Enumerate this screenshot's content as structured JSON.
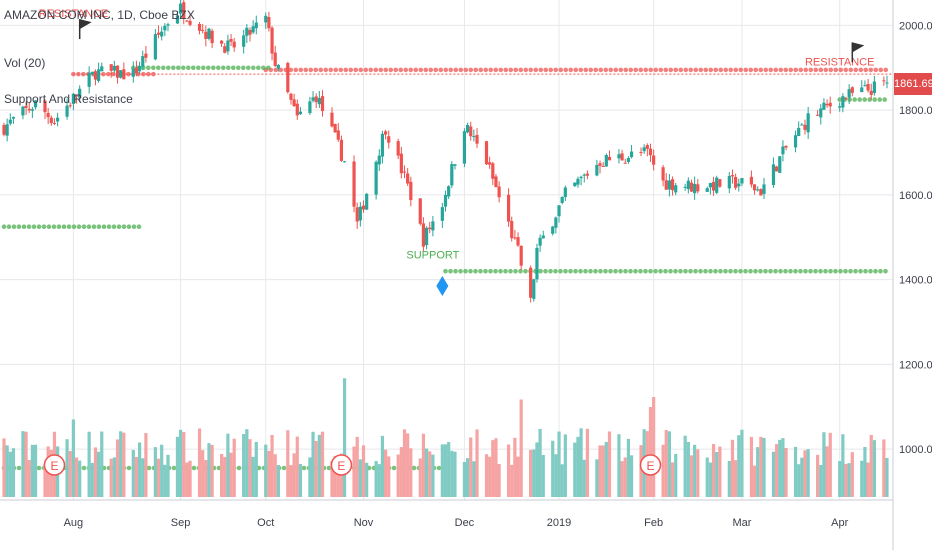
{
  "legend": {
    "symbol": "AMAZON COM INC, 1D, Cboe BZX",
    "volume": "Vol (20)",
    "indicator": "Support And Resistance"
  },
  "current_price": "1861.69",
  "colors": {
    "up": "#26a69a",
    "down": "#ef5350",
    "up_volume": "#80cbc4",
    "down_volume": "#f5a3a3",
    "resistance": "#ef5350",
    "support": "#4caf50",
    "grid": "#e6e8ec",
    "axis_text": "#3b3f4a",
    "price_tag": "#e14b4b",
    "diamond": "#2196f3"
  },
  "chart_data": {
    "type": "candlestick",
    "y_ticks": [
      "2000.00",
      "1800.00",
      "1600.00",
      "1400.00",
      "1200.00",
      "1000.00"
    ],
    "y_tick_values": [
      2000,
      1800,
      1600,
      1400,
      1200,
      1000
    ],
    "ylim": [
      880,
      2060
    ],
    "x_labels": [
      {
        "label": "Aug",
        "date": "2018-08-01"
      },
      {
        "label": "Sep",
        "date": "2018-09-04"
      },
      {
        "label": "Oct",
        "date": "2018-10-01"
      },
      {
        "label": "Nov",
        "date": "2018-11-01"
      },
      {
        "label": "Dec",
        "date": "2018-12-03"
      },
      {
        "label": "2019",
        "date": "2019-01-02"
      },
      {
        "label": "Feb",
        "date": "2019-02-01"
      },
      {
        "label": "Mar",
        "date": "2019-03-01"
      },
      {
        "label": "Apr",
        "date": "2019-04-01"
      }
    ],
    "date_range": [
      "2018-07-10",
      "2019-04-16"
    ],
    "price_path": [
      {
        "date": "2018-07-10",
        "close": 1760
      },
      {
        "date": "2018-07-20",
        "close": 1815
      },
      {
        "date": "2018-07-26",
        "close": 1775
      },
      {
        "date": "2018-08-08",
        "close": 1890
      },
      {
        "date": "2018-08-20",
        "close": 1885
      },
      {
        "date": "2018-08-31",
        "close": 2010
      },
      {
        "date": "2018-09-04",
        "close": 2040
      },
      {
        "date": "2018-09-14",
        "close": 1970
      },
      {
        "date": "2018-09-20",
        "close": 1945
      },
      {
        "date": "2018-10-01",
        "close": 2015
      },
      {
        "date": "2018-10-04",
        "close": 1910
      },
      {
        "date": "2018-10-11",
        "close": 1780
      },
      {
        "date": "2018-10-17",
        "close": 1835
      },
      {
        "date": "2018-10-26",
        "close": 1680
      },
      {
        "date": "2018-10-30",
        "close": 1530
      },
      {
        "date": "2018-11-08",
        "close": 1760
      },
      {
        "date": "2018-11-16",
        "close": 1600
      },
      {
        "date": "2018-11-20",
        "close": 1495
      },
      {
        "date": "2018-11-26",
        "close": 1580
      },
      {
        "date": "2018-12-03",
        "close": 1765
      },
      {
        "date": "2018-12-10",
        "close": 1680
      },
      {
        "date": "2018-12-20",
        "close": 1465
      },
      {
        "date": "2018-12-24",
        "close": 1345
      },
      {
        "date": "2018-12-26",
        "close": 1470
      },
      {
        "date": "2019-01-04",
        "close": 1600
      },
      {
        "date": "2019-01-15",
        "close": 1680
      },
      {
        "date": "2019-01-30",
        "close": 1700
      },
      {
        "date": "2019-02-04",
        "close": 1630
      },
      {
        "date": "2019-02-14",
        "close": 1620
      },
      {
        "date": "2019-02-28",
        "close": 1630
      },
      {
        "date": "2019-03-07",
        "close": 1610
      },
      {
        "date": "2019-03-15",
        "close": 1710
      },
      {
        "date": "2019-03-22",
        "close": 1780
      },
      {
        "date": "2019-04-02",
        "close": 1830
      },
      {
        "date": "2019-04-16",
        "close": 1862
      }
    ],
    "volume_ylim": [
      0,
      1
    ],
    "volume_peaks": [
      {
        "date": "2018-08-01",
        "value": 0.62
      },
      {
        "date": "2018-10-26",
        "value": 0.95
      },
      {
        "date": "2018-12-21",
        "value": 0.78
      },
      {
        "date": "2019-01-31",
        "value": 0.72
      },
      {
        "date": "2019-02-01",
        "value": 0.8
      }
    ],
    "resistance_levels": [
      {
        "from": "2018-08-01",
        "to": "2018-08-27",
        "price": 1885
      },
      {
        "from": "2018-10-01",
        "to": "2019-04-16",
        "price": 1895
      }
    ],
    "support_levels": [
      {
        "from": "2018-08-20",
        "to": "2018-10-02",
        "price": 1900
      },
      {
        "from": "2018-07-10",
        "to": "2018-08-22",
        "price": 1525
      },
      {
        "from": "2018-11-27",
        "to": "2019-04-16",
        "price": 1420
      },
      {
        "from": "2019-04-01",
        "to": "2019-04-16",
        "price": 1825
      },
      {
        "from": "2018-07-10",
        "to": "2018-11-26",
        "volume_dots": true
      }
    ],
    "annotations": [
      {
        "text": "RESISTANCE",
        "date": "2018-08-01",
        "price": 2020,
        "kind": "resistance"
      },
      {
        "text": "RESISTANCE",
        "date": "2019-04-01",
        "price": 1905,
        "kind": "resistance"
      },
      {
        "text": "SUPPORT",
        "date": "2018-11-23",
        "price": 1450,
        "kind": "support"
      }
    ],
    "flags": [
      {
        "date": "2018-08-03",
        "price": 2015
      },
      {
        "date": "2019-04-05",
        "price": 1960
      }
    ],
    "diamond": {
      "date": "2018-11-26",
      "price": 1385
    },
    "earnings_markers": [
      {
        "text": "E",
        "date": "2018-07-26"
      },
      {
        "text": "E",
        "date": "2018-10-25"
      },
      {
        "text": "E",
        "date": "2019-01-31"
      }
    ]
  }
}
